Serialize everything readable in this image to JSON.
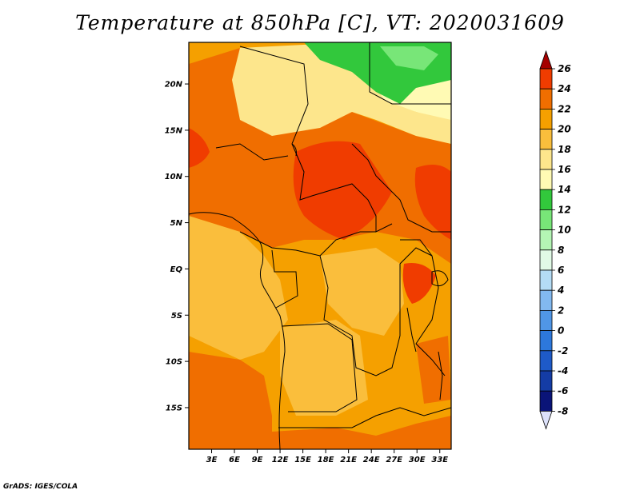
{
  "title": "Temperature at 850hPa [C], VT: 2020031609",
  "credit": "GrADS: IGES/COLA",
  "map": {
    "lon_range": [
      0,
      34.5
    ],
    "lat_range": [
      -19.5,
      24.5
    ],
    "lon_ticks": [
      {
        "value": 3,
        "label": "3E"
      },
      {
        "value": 6,
        "label": "6E"
      },
      {
        "value": 9,
        "label": "9E"
      },
      {
        "value": 12,
        "label": "12E"
      },
      {
        "value": 15,
        "label": "15E"
      },
      {
        "value": 18,
        "label": "18E"
      },
      {
        "value": 21,
        "label": "21E"
      },
      {
        "value": 24,
        "label": "24E"
      },
      {
        "value": 27,
        "label": "27E"
      },
      {
        "value": 30,
        "label": "30E"
      },
      {
        "value": 33,
        "label": "33E"
      }
    ],
    "lat_ticks": [
      {
        "value": 20,
        "label": "20N"
      },
      {
        "value": 15,
        "label": "15N"
      },
      {
        "value": 10,
        "label": "10N"
      },
      {
        "value": 5,
        "label": "5N"
      },
      {
        "value": 0,
        "label": "EQ"
      },
      {
        "value": -5,
        "label": "5S"
      },
      {
        "value": -10,
        "label": "10S"
      },
      {
        "value": -15,
        "label": "15S"
      }
    ]
  },
  "colorbar": {
    "levels": [
      {
        "value": "26",
        "color": "#a50000"
      },
      {
        "value": "24",
        "color": "#f03c00"
      },
      {
        "value": "22",
        "color": "#f06e00"
      },
      {
        "value": "20",
        "color": "#f5a000"
      },
      {
        "value": "18",
        "color": "#fabe3c"
      },
      {
        "value": "16",
        "color": "#fde68c"
      },
      {
        "value": "14",
        "color": "#fffab4"
      },
      {
        "value": "12",
        "color": "#32c83c"
      },
      {
        "value": "10",
        "color": "#78e678"
      },
      {
        "value": "8",
        "color": "#b4f5b4"
      },
      {
        "value": "6",
        "color": "#e1fae6"
      },
      {
        "value": "4",
        "color": "#b4dcf5"
      },
      {
        "value": "2",
        "color": "#82b9f0"
      },
      {
        "value": "0",
        "color": "#5096e6"
      },
      {
        "value": "-2",
        "color": "#2d78dc"
      },
      {
        "value": "-4",
        "color": "#1e5ac8"
      },
      {
        "value": "-6",
        "color": "#143ca5"
      },
      {
        "value": "-8",
        "color": "#0a1478"
      }
    ],
    "below_color": "#dce1fa"
  }
}
